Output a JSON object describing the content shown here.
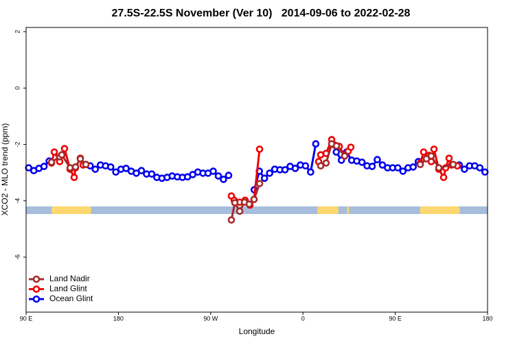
{
  "chart_data": {
    "type": "line",
    "title": "27.5S-22.5S November (Ver 10)   2014-09-06 to 2022-02-28",
    "x_label": "Longitude",
    "y_label": "XCO2 - MLO trend (ppm)",
    "xlim": [
      90,
      540
    ],
    "xticks": [
      {
        "value": 90,
        "label": "90 E"
      },
      {
        "value": 180,
        "label": "180"
      },
      {
        "value": 270,
        "label": "90 W"
      },
      {
        "value": 360,
        "label": "0"
      },
      {
        "value": 450,
        "label": "90 E"
      },
      {
        "value": 540,
        "label": "180"
      }
    ],
    "ylim": [
      -7.95,
      2.15
    ],
    "yticks": [
      -6,
      -4,
      -2,
      0,
      2
    ],
    "legend": "bottom-left",
    "band_color": "#a6bddb",
    "land_color": "#fdd870",
    "land_ranges": [
      [
        114.8,
        153.6
      ],
      [
        374,
        394.7
      ],
      [
        403,
        405
      ],
      [
        474,
        513
      ]
    ],
    "band_value_range": [
      -4.2,
      -4.47
    ],
    "series": [
      {
        "name": "Land Nadir",
        "color": "#a52a2a",
        "x": [
          114.8,
          122.8,
          124.8,
          132.9,
          138.2,
          142.9,
          148.3,
          200,
          290.2,
          293.6,
          298.3,
          303,
          307.6,
          312.3,
          317.7,
          350,
          377.3,
          382.6,
          388,
          392.7,
          400.7,
          450,
          474.4,
          480.4,
          485.1,
          492.5,
          506.5
        ],
        "values": [
          -2.63,
          -2.44,
          -2.37,
          -2.83,
          -2.8,
          -2.51,
          -2.71,
          null,
          -4.68,
          -4.07,
          -4.37,
          -4.05,
          -4.12,
          -3.95,
          -3.39,
          null,
          -2.76,
          -2.66,
          -1.98,
          -2.05,
          -2.41,
          null,
          -2.71,
          -2.51,
          -2.41,
          -2.83,
          -2.71
        ]
      },
      {
        "name": "Land Glint",
        "color": "#ee0000",
        "x": [
          114.8,
          117.5,
          122.8,
          124.8,
          127.5,
          132.9,
          136.9,
          138.2,
          142.9,
          145.6,
          148.3,
          200,
          290.2,
          292.9,
          298.3,
          303.6,
          308.3,
          312.3,
          317.7,
          350,
          375.3,
          377.3,
          382.6,
          388,
          390.7,
          395.4,
          400.7,
          404.1,
          406.7,
          450,
          474.4,
          477.7,
          480.4,
          483.1,
          485.1,
          487.8,
          492.5,
          497.2,
          499.2,
          502.5,
          505.2,
          510.5
        ],
        "values": [
          -2.66,
          -2.27,
          -2.61,
          -2.39,
          -2.15,
          -2.88,
          -3.17,
          -2.83,
          -2.49,
          -2.73,
          -2.71,
          null,
          -3.83,
          -3.98,
          -4.05,
          -3.98,
          -4.15,
          -3.95,
          -2.17,
          null,
          -2.61,
          -2.37,
          -2.32,
          -1.83,
          -2.02,
          -2.07,
          -2.41,
          -2.24,
          -2.1,
          null,
          -2.66,
          -2.27,
          -2.51,
          -2.39,
          -2.61,
          -2.17,
          -2.88,
          -3.17,
          -2.83,
          -2.49,
          -2.73,
          -2.76
        ]
      },
      {
        "name": "Ocean Glint",
        "color": "#0000ee",
        "x": [
          92.5,
          97.5,
          102.5,
          107.5,
          112.5,
          130,
          152.5,
          157.5,
          162.5,
          167.5,
          172.5,
          177.5,
          182.5,
          187.5,
          192.5,
          197.5,
          202.5,
          207.5,
          212.5,
          217.5,
          222.5,
          227.5,
          232.5,
          237.5,
          242.5,
          247.5,
          252.5,
          257.5,
          262.5,
          267.5,
          272.5,
          277.5,
          282.5,
          287.5,
          300,
          312.5,
          317.5,
          322.5,
          327.5,
          332.5,
          337.5,
          342.5,
          347.5,
          352.5,
          357.5,
          362.5,
          367.5,
          372.5,
          385,
          392.5,
          397.5,
          402.5,
          407.5,
          412.5,
          417.5,
          422.5,
          427.5,
          432.5,
          437.5,
          442.5,
          447.5,
          452.5,
          457.5,
          462.5,
          467.5,
          472.5,
          490,
          512.5,
          517.5,
          522.5,
          527.5,
          532.5,
          537.5
        ],
        "values": [
          -2.83,
          -2.93,
          -2.85,
          -2.78,
          -2.59,
          null,
          -2.76,
          -2.88,
          -2.73,
          -2.76,
          -2.8,
          -2.98,
          -2.88,
          -2.85,
          -2.95,
          -3.02,
          -2.93,
          -3.05,
          -3.05,
          -3.17,
          -3.2,
          -3.17,
          -3.12,
          -3.15,
          -3.17,
          -3.15,
          -3.07,
          -2.98,
          -3.02,
          -3.02,
          -2.95,
          -3.12,
          -3.24,
          -3.1,
          null,
          -3.61,
          -2.95,
          -3.2,
          -3.02,
          -2.88,
          -2.9,
          -2.9,
          -2.78,
          -2.85,
          -2.73,
          -2.76,
          -2.98,
          -1.98,
          null,
          -2.27,
          -2.56,
          -2.27,
          -2.56,
          -2.59,
          -2.63,
          -2.76,
          -2.78,
          -2.54,
          -2.73,
          -2.83,
          -2.83,
          -2.83,
          -2.95,
          -2.83,
          -2.8,
          -2.61,
          null,
          -2.73,
          -2.88,
          -2.76,
          -2.76,
          -2.83,
          -2.98
        ]
      }
    ]
  }
}
